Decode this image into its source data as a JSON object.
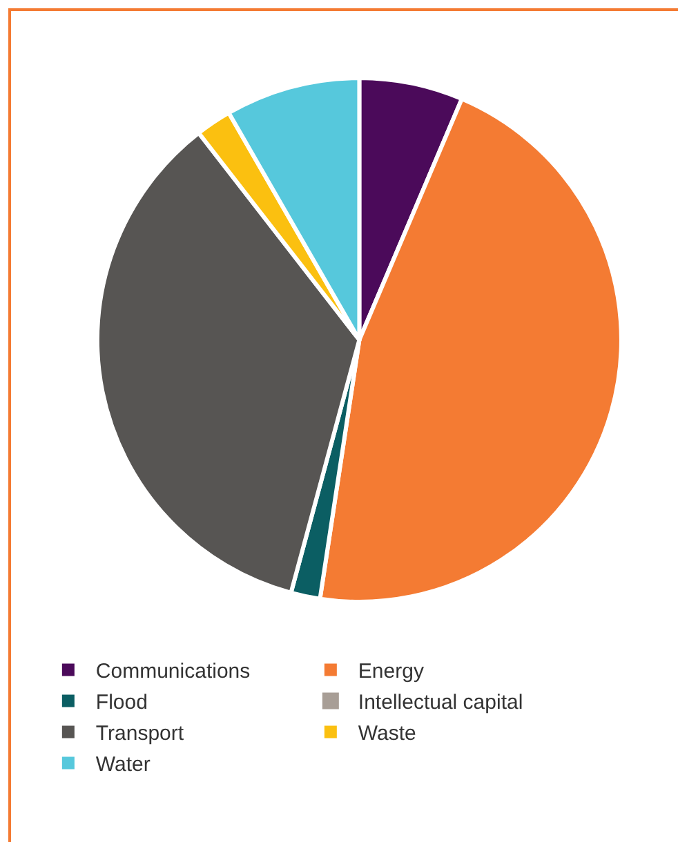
{
  "chart_data": {
    "type": "pie",
    "categories": [
      "Communications",
      "Energy",
      "Flood",
      "Intellectual capital",
      "Transport",
      "Waste",
      "Water"
    ],
    "values": [
      6.4,
      46,
      1.8,
      null,
      35.3,
      2.2,
      8.3
    ],
    "colors": [
      "#4b0a5a",
      "#f47b33",
      "#0b5e63",
      "#a89e96",
      "#575553",
      "#fbc010",
      "#56c8dc"
    ],
    "legend": "bottom"
  }
}
